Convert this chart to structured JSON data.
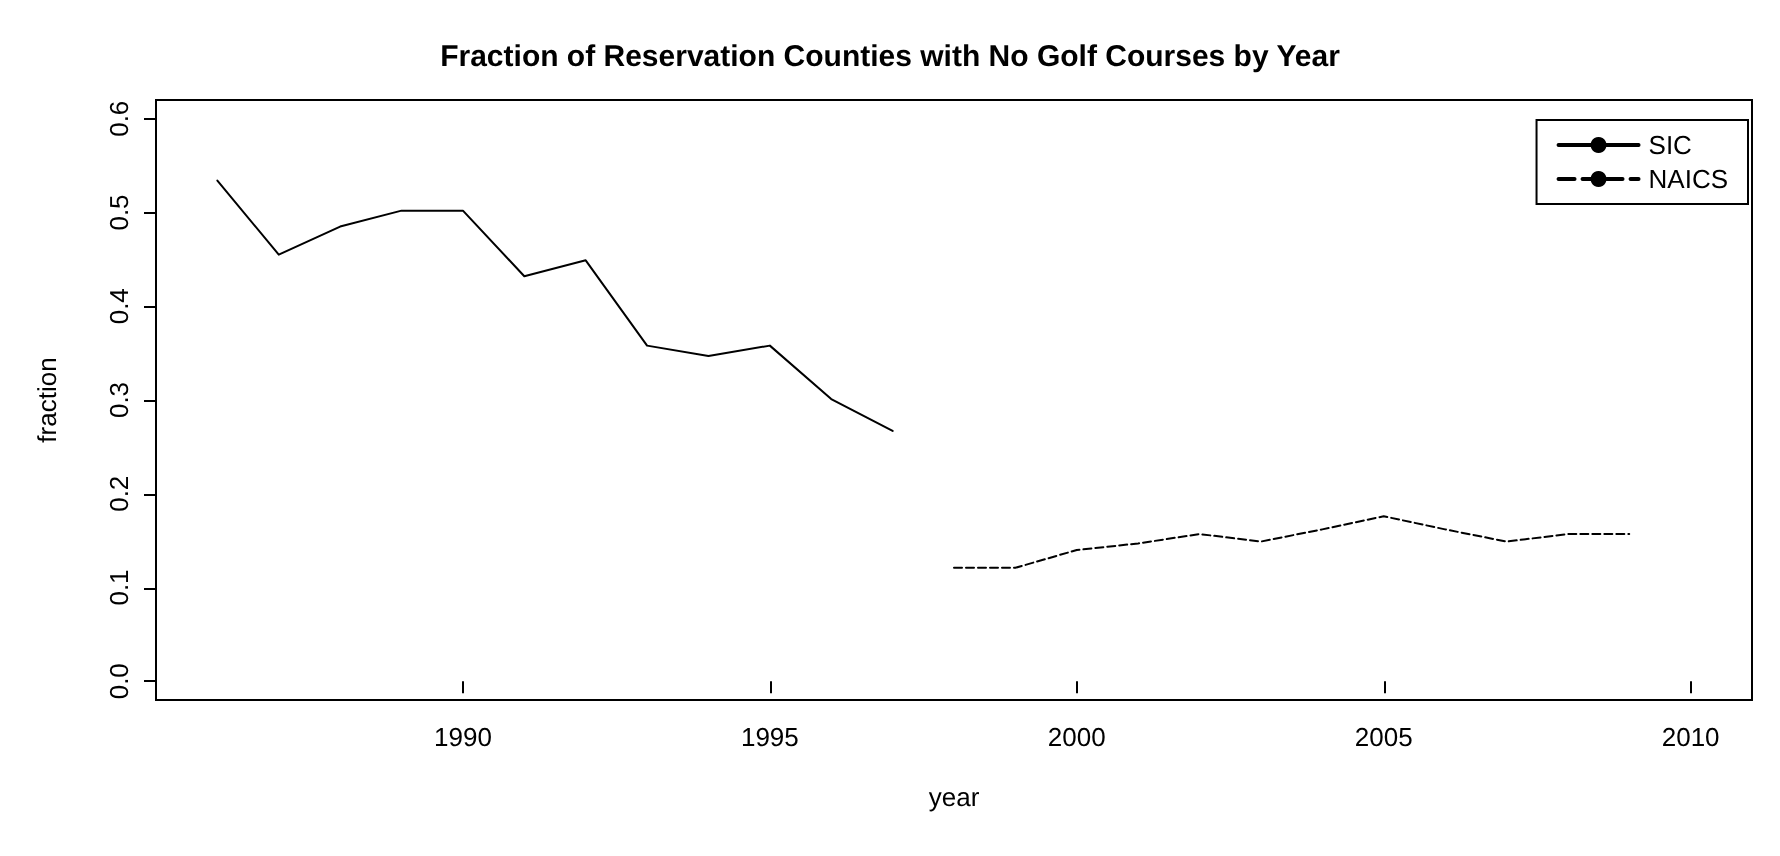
{
  "chart_data": {
    "type": "line",
    "title": "Fraction of Reservation Counties with No Golf Courses by Year",
    "xlabel": "year",
    "ylabel": "fraction",
    "series": [
      {
        "name": "SIC",
        "color": "#000000",
        "line_style": "solid",
        "x": [
          1986,
          1987,
          1988,
          1989,
          1990,
          1991,
          1992,
          1993,
          1994,
          1995,
          1996,
          1997
        ],
        "values": [
          0.534,
          0.455,
          0.485,
          0.502,
          0.502,
          0.432,
          0.449,
          0.358,
          0.347,
          0.358,
          0.301,
          0.267
        ]
      },
      {
        "name": "NAICS",
        "color": "#000000",
        "line_style": "dashed",
        "x": [
          1998,
          1999,
          2000,
          2001,
          2002,
          2003,
          2004,
          2005,
          2006,
          2007,
          2008,
          2009
        ],
        "values": [
          0.121,
          0.121,
          0.14,
          0.147,
          0.157,
          0.149,
          0.162,
          0.176,
          0.162,
          0.149,
          0.157,
          0.157
        ]
      }
    ],
    "xlim": [
      1985,
      2011
    ],
    "xticks": [
      1990,
      1995,
      2000,
      2005,
      2010
    ],
    "ylim": [
      -0.02,
      0.62
    ],
    "yticks": [
      {
        "value": 0,
        "label": "0.0"
      },
      0.1,
      0.2,
      0.3,
      0.4,
      0.5,
      0.6
    ],
    "grid": false,
    "legend": "top right",
    "marker": "none"
  }
}
